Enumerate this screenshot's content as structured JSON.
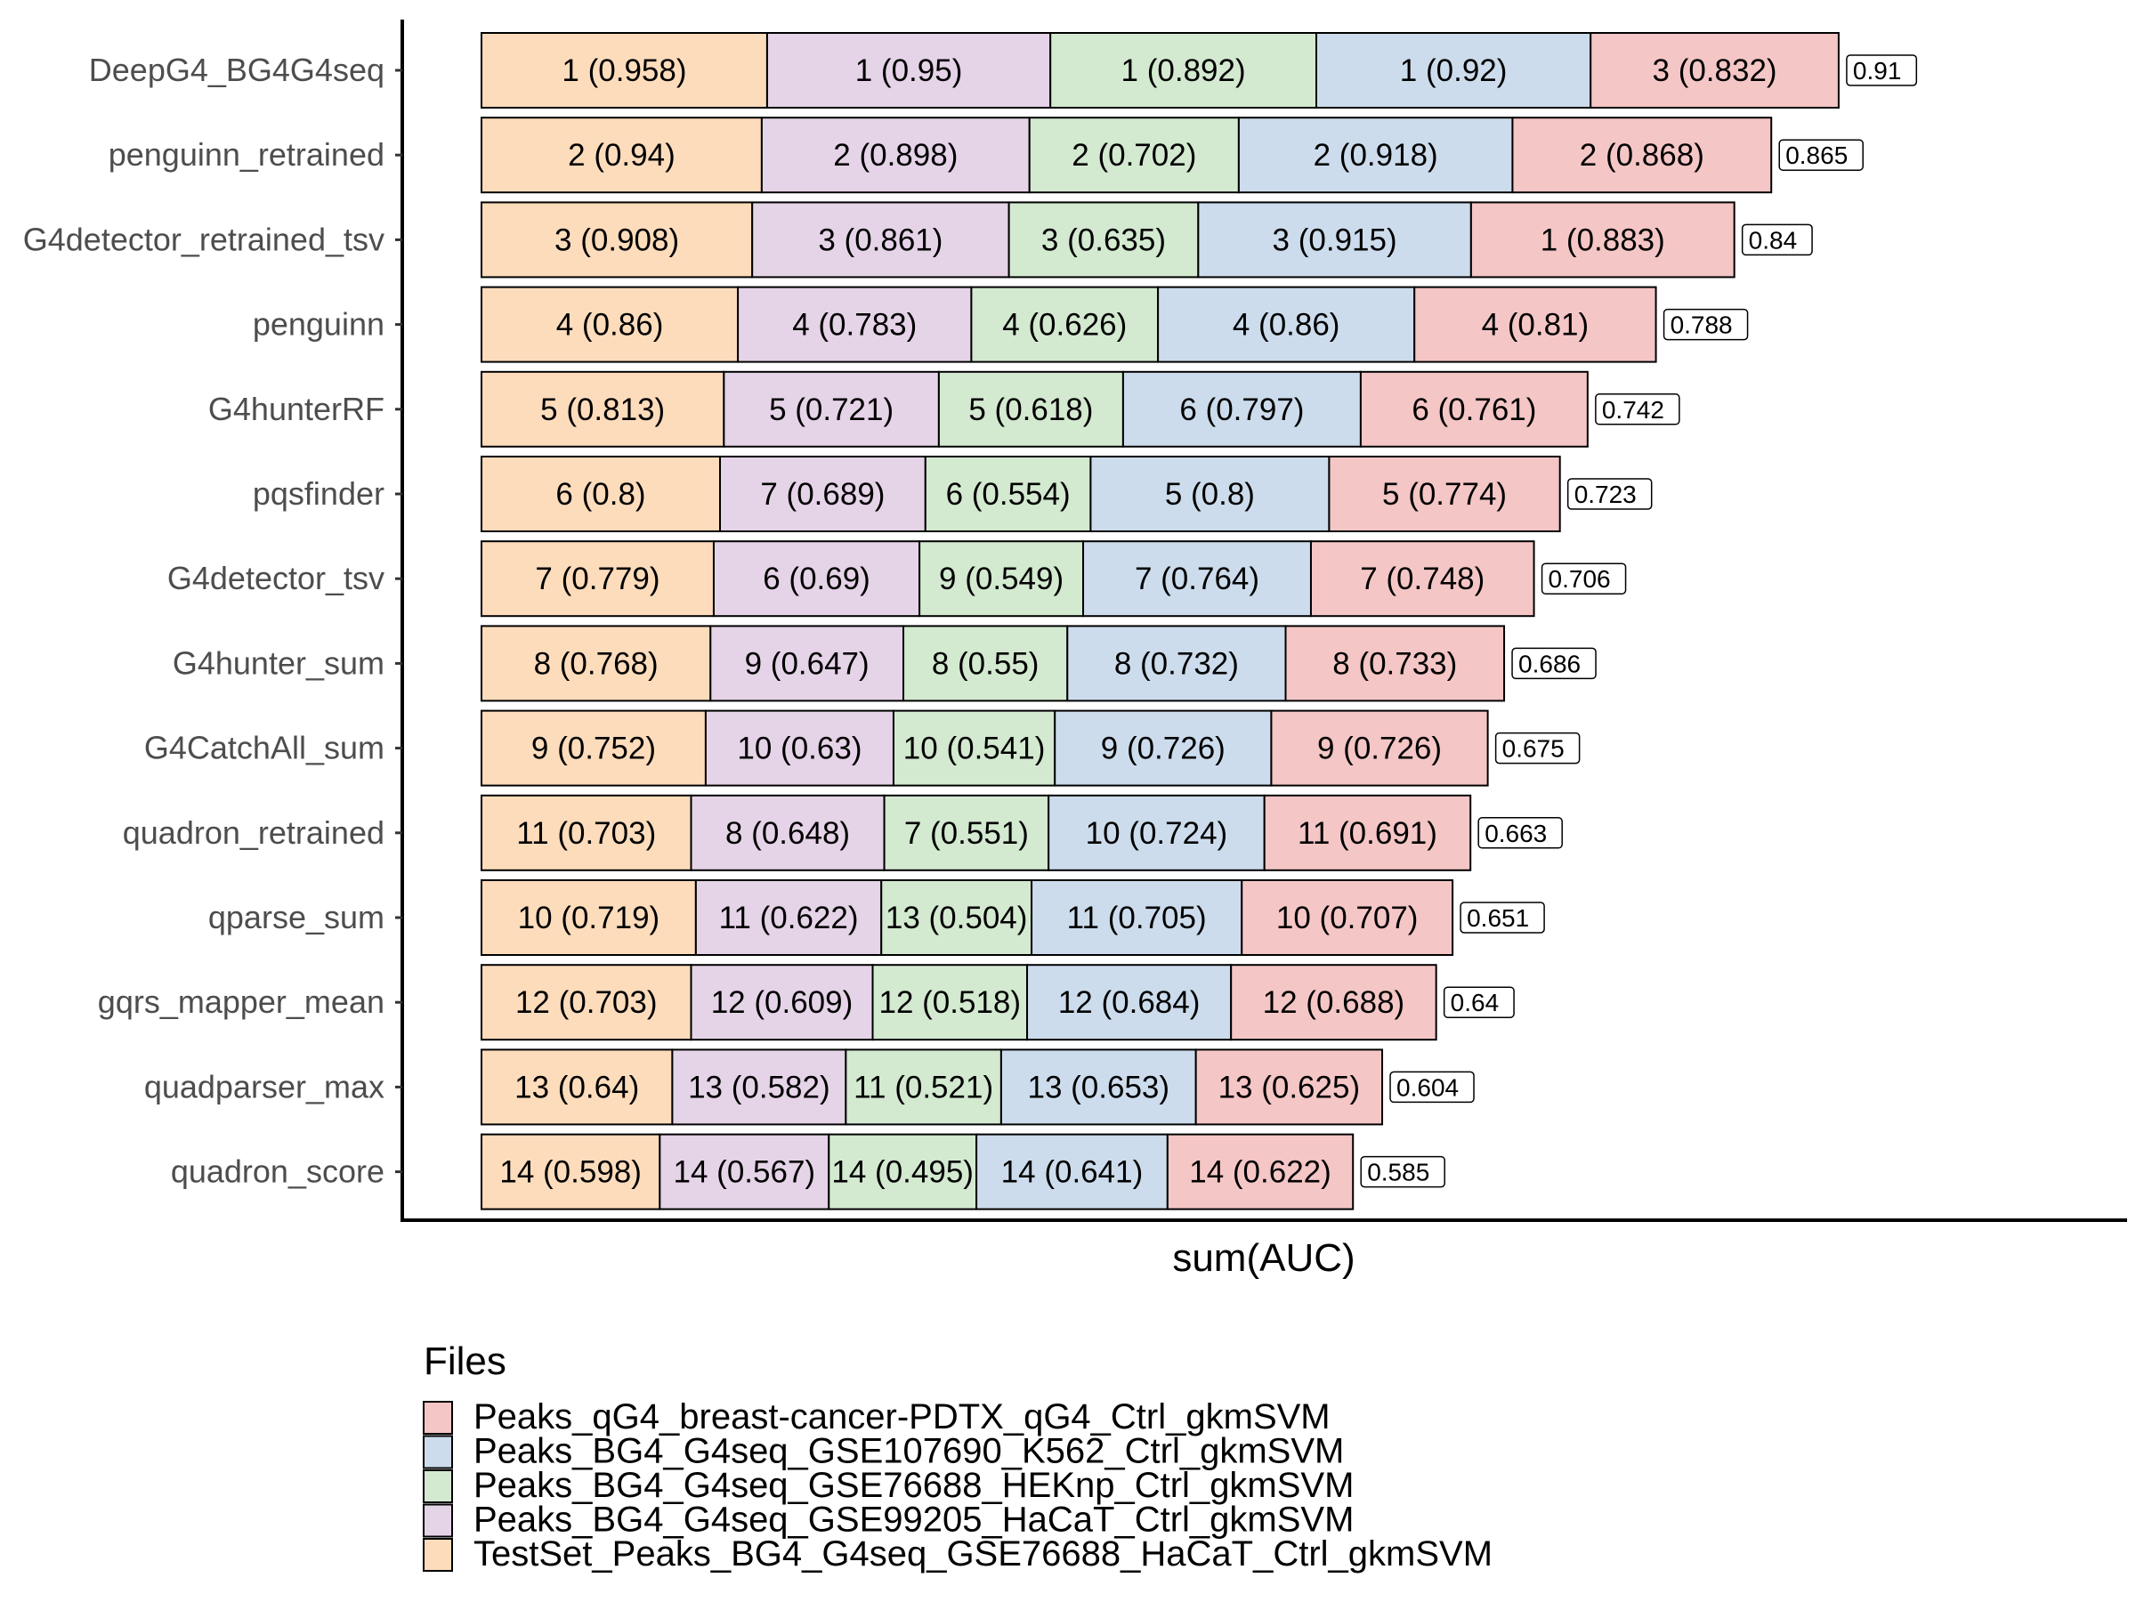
{
  "chart_data": {
    "type": "bar",
    "orientation": "horizontal",
    "stacked": true,
    "xlabel": "sum(AUC)",
    "ylabel": "",
    "xlim": [
      0,
      5.0
    ],
    "grid": false,
    "legend_title": "Files",
    "legend_position": "bottom",
    "categories": [
      "DeepG4_BG4G4seq",
      "penguinn_retrained",
      "G4detector_retrained_tsv",
      "penguinn",
      "G4hunterRF",
      "pqsfinder",
      "G4detector_tsv",
      "G4hunter_sum",
      "G4CatchAll_sum",
      "quadron_retrained",
      "qparse_sum",
      "gqrs_mapper_mean",
      "quadparser_max",
      "quadron_score"
    ],
    "series": [
      {
        "name": "TestSet_Peaks_BG4_G4seq_GSE76688_HaCaT_Ctrl_gkmSVM",
        "color": "#fddcbc",
        "values": [
          0.958,
          0.94,
          0.908,
          0.86,
          0.813,
          0.8,
          0.779,
          0.768,
          0.752,
          0.703,
          0.719,
          0.703,
          0.64,
          0.598
        ],
        "ranks": [
          1,
          2,
          3,
          4,
          5,
          6,
          7,
          8,
          9,
          11,
          10,
          12,
          13,
          14
        ]
      },
      {
        "name": "Peaks_BG4_G4seq_GSE99205_HaCaT_Ctrl_gkmSVM",
        "color": "#e5d3e7",
        "values": [
          0.95,
          0.898,
          0.861,
          0.783,
          0.721,
          0.689,
          0.69,
          0.647,
          0.63,
          0.648,
          0.622,
          0.609,
          0.582,
          0.567
        ],
        "ranks": [
          1,
          2,
          3,
          4,
          5,
          7,
          6,
          9,
          10,
          8,
          11,
          12,
          13,
          14
        ]
      },
      {
        "name": "Peaks_BG4_G4seq_GSE76688_HEKnp_Ctrl_gkmSVM",
        "color": "#d3e9d0",
        "values": [
          0.892,
          0.702,
          0.635,
          0.626,
          0.618,
          0.554,
          0.549,
          0.55,
          0.541,
          0.551,
          0.504,
          0.518,
          0.521,
          0.495
        ],
        "ranks": [
          1,
          2,
          3,
          4,
          5,
          6,
          9,
          8,
          10,
          7,
          13,
          12,
          11,
          14
        ]
      },
      {
        "name": "Peaks_BG4_G4seq_GSE107690_K562_Ctrl_gkmSVM",
        "color": "#ccdcec",
        "values": [
          0.92,
          0.918,
          0.915,
          0.86,
          0.797,
          0.8,
          0.764,
          0.732,
          0.726,
          0.724,
          0.705,
          0.684,
          0.653,
          0.641
        ],
        "ranks": [
          1,
          2,
          3,
          4,
          6,
          5,
          7,
          8,
          9,
          10,
          11,
          12,
          13,
          14
        ]
      },
      {
        "name": "Peaks_qG4_breast-cancer-PDTX_qG4_Ctrl_gkmSVM",
        "color": "#f5c6c6",
        "values": [
          0.832,
          0.868,
          0.883,
          0.81,
          0.761,
          0.774,
          0.748,
          0.733,
          0.726,
          0.691,
          0.707,
          0.688,
          0.625,
          0.622
        ],
        "ranks": [
          3,
          2,
          1,
          4,
          6,
          5,
          7,
          8,
          9,
          11,
          10,
          12,
          13,
          14
        ]
      }
    ],
    "mean_labels": [
      "0.91",
      "0.865",
      "0.84",
      "0.788",
      "0.742",
      "0.723",
      "0.706",
      "0.686",
      "0.675",
      "0.663",
      "0.651",
      "0.64",
      "0.604",
      "0.585"
    ],
    "legend_order": [
      4,
      3,
      2,
      1,
      0
    ]
  }
}
